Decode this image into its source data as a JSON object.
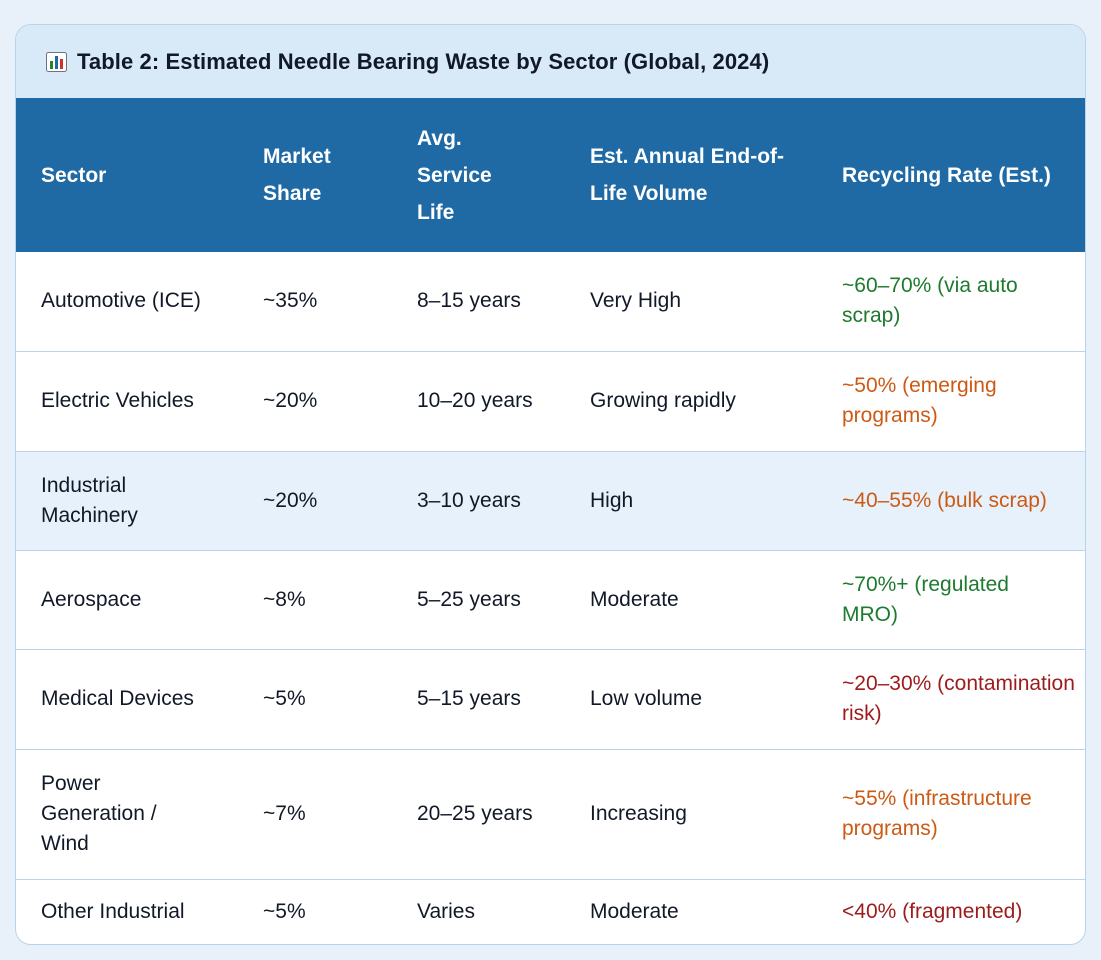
{
  "table": {
    "title": "Table 2: Estimated Needle Bearing Waste by Sector (Global, 2024)",
    "title_icon": "bar-chart-icon",
    "headers": [
      "Sector",
      "Market Share",
      "Avg. Service Life",
      "Est. Annual End-of-Life Volume",
      "Recycling Rate (Est.)"
    ],
    "rows": [
      {
        "sector": "Automotive (ICE)",
        "market_share": "~35%",
        "service_life": "8–15 years",
        "eol_volume": "Very High",
        "recycling_rate": "~60–70% (via auto scrap)",
        "rate_color": "green"
      },
      {
        "sector": "Electric Vehicles",
        "market_share": "~20%",
        "service_life": "10–20 years",
        "eol_volume": "Growing rapidly",
        "recycling_rate": "~50% (emerging programs)",
        "rate_color": "orange"
      },
      {
        "sector": "Industrial Machinery",
        "market_share": "~20%",
        "service_life": "3–10 years",
        "eol_volume": "High",
        "recycling_rate": "~40–55% (bulk scrap)",
        "rate_color": "orange"
      },
      {
        "sector": "Aerospace",
        "market_share": "~8%",
        "service_life": "5–25 years",
        "eol_volume": "Moderate",
        "recycling_rate": "~70%+ (regulated MRO)",
        "rate_color": "green"
      },
      {
        "sector": "Medical Devices",
        "market_share": "~5%",
        "service_life": "5–15 years",
        "eol_volume": "Low volume",
        "recycling_rate": "~20–30% (contamination risk)",
        "rate_color": "red"
      },
      {
        "sector": "Power Generation / Wind",
        "market_share": "~7%",
        "service_life": "20–25 years",
        "eol_volume": "Increasing",
        "recycling_rate": "~55% (infrastructure programs)",
        "rate_color": "orange"
      },
      {
        "sector": "Other Industrial",
        "market_share": "~5%",
        "service_life": "Varies",
        "eol_volume": "Moderate",
        "recycling_rate": "<40% (fragmented)",
        "rate_color": "red"
      }
    ]
  },
  "colors": {
    "header_background": "#1f6aa5",
    "title_background": "#d8e9f7",
    "alt_row_background": "#e6f1fb",
    "green": "#1e7a2f",
    "orange": "#cc5a14",
    "red": "#9e1b1b"
  }
}
